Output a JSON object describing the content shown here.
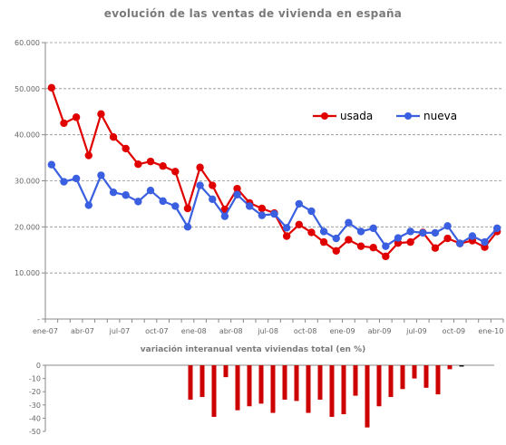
{
  "chart_data": [
    {
      "type": "line",
      "title": "evolución de las ventas de vivienda en españa",
      "ylim": [
        0,
        60000
      ],
      "y_ticks": [
        "-",
        "10.000",
        "20.000",
        "30.000",
        "40.000",
        "50.000",
        "60.000"
      ],
      "x_ticks": [
        "ene-07",
        "abr-07",
        "jul-07",
        "oct-07",
        "ene-08",
        "abr-08",
        "jul-08",
        "oct-08",
        "ene-09",
        "abr-09",
        "jul-09",
        "oct-09",
        "ene-10"
      ],
      "grid": true,
      "legend_position": "top-right",
      "series": [
        {
          "name": "usada",
          "color": "#e00000",
          "values": [
            50200,
            42500,
            43800,
            35500,
            44500,
            39500,
            37000,
            33600,
            34200,
            33200,
            32000,
            24000,
            32900,
            29000,
            23800,
            28300,
            25200,
            24000,
            23000,
            18000,
            20500,
            18800,
            16700,
            14800,
            17200,
            15800,
            15500,
            13600,
            16500,
            16700,
            18800,
            15400,
            17500,
            16400,
            17000,
            15600,
            19000
          ]
        },
        {
          "name": "nueva",
          "color": "#3a5fe0",
          "values": [
            33500,
            29800,
            30500,
            24700,
            31200,
            27500,
            26900,
            25500,
            27900,
            25600,
            24500,
            20000,
            29000,
            26000,
            22300,
            27000,
            24500,
            22500,
            22800,
            19800,
            25000,
            23400,
            19000,
            17500,
            20900,
            19000,
            19700,
            15800,
            17600,
            19000,
            18700,
            18700,
            20200,
            16400,
            18000,
            16700,
            19700
          ]
        }
      ]
    },
    {
      "type": "bar",
      "title": "variación interanual venta viviendas total (en %)",
      "ylim": [
        -50,
        0
      ],
      "y_ticks": [
        "0",
        "-10",
        "-20",
        "-30",
        "-40",
        "-50"
      ],
      "color": "#cc0000",
      "values": [
        -26,
        -24,
        -39,
        -9,
        -34,
        -31,
        -29,
        -36,
        -26,
        -27,
        -36,
        -26,
        -39,
        -37,
        -23,
        -47,
        -31,
        -24,
        -18,
        -10,
        -17,
        -22,
        -3,
        -1
      ]
    }
  ]
}
